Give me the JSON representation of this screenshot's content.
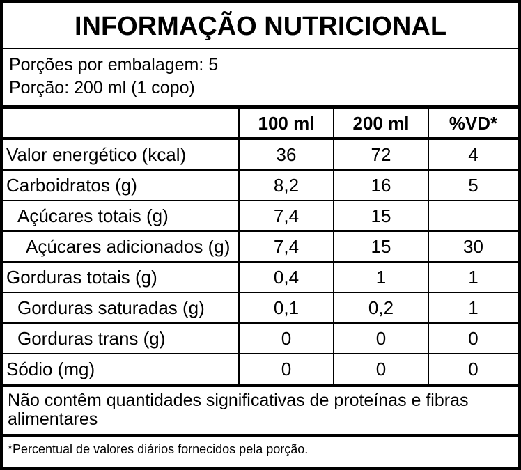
{
  "header": {
    "title": "INFORMAÇÃO NUTRICIONAL"
  },
  "servings": [
    "Porções por embalagem: 5",
    "Porção: 200 ml (1 copo)"
  ],
  "table": {
    "columns": [
      "100 ml",
      "200 ml",
      "%VD*"
    ],
    "rows": [
      [
        "Valor energético (kcal)",
        "36",
        "72",
        "4"
      ],
      [
        "Carboidratos (g)",
        "8,2",
        "16",
        "5"
      ],
      [
        "Açúcares totais (g)",
        "7,4",
        "15",
        null
      ],
      [
        "Açúcares adicionados (g)",
        "7,4",
        "15",
        "30"
      ],
      [
        "Gorduras totais (g)",
        "0,4",
        "1",
        "1"
      ],
      [
        "Gorduras saturadas (g)",
        "0,1",
        "0,2",
        "1"
      ],
      [
        "Gorduras trans (g)",
        "0",
        "0",
        "0"
      ],
      [
        "Sódio (mg)",
        "0",
        "0",
        "0"
      ]
    ]
  },
  "notes": [
    "Não contêm quantidades significativas de proteínas e fibras alimentares",
    "*Percentual de valores diários fornecidos pela porção."
  ]
}
